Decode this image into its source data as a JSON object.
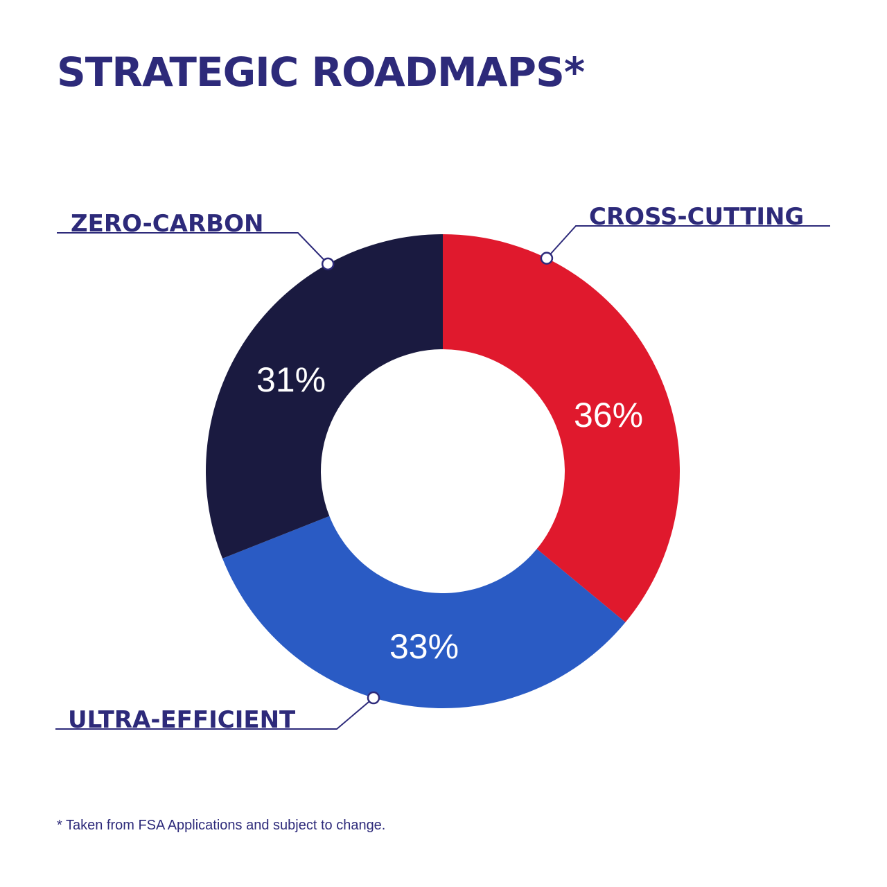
{
  "title": "STRATEGIC ROADMAPS*",
  "footnote": "* Taken from FSA Applications and subject to change.",
  "colors": {
    "title": "#2d2a7a",
    "label": "#2d2a7a",
    "leader": "#2d2a7a",
    "zero_carbon": "#1a1a40",
    "cross_cutting": "#e0192d",
    "ultra_efficient": "#2a5bc4"
  },
  "chart_data": {
    "type": "pie",
    "donut": true,
    "title": "STRATEGIC ROADMAPS*",
    "slices": [
      {
        "label": "CROSS-CUTTING",
        "value": 36,
        "value_label": "36%",
        "color": "#e0192d"
      },
      {
        "label": "ULTRA-EFFICIENT",
        "value": 33,
        "value_label": "33%",
        "color": "#2a5bc4"
      },
      {
        "label": "ZERO-CARBON",
        "value": 31,
        "value_label": "31%",
        "color": "#1a1a40"
      }
    ]
  }
}
